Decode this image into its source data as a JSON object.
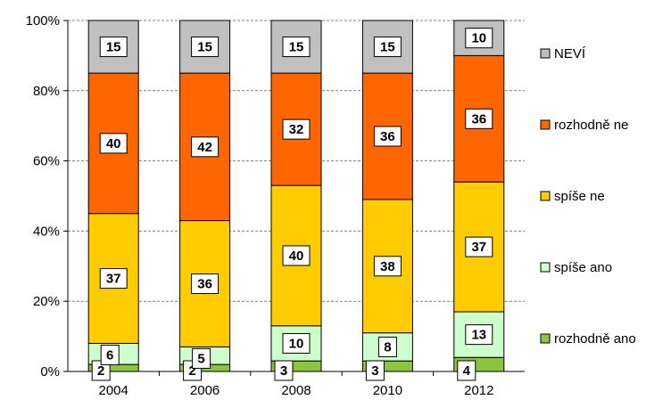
{
  "chart_data": {
    "type": "bar",
    "stacked": true,
    "percent": true,
    "categories": [
      "2004",
      "2006",
      "2008",
      "2010",
      "2012"
    ],
    "series": [
      {
        "name": "rozhodně ano",
        "color": "#8BC53F",
        "values": [
          2,
          2,
          3,
          3,
          4
        ]
      },
      {
        "name": "spíše ano",
        "color": "#CCFFCC",
        "values": [
          6,
          5,
          10,
          8,
          13
        ]
      },
      {
        "name": "spíše ne",
        "color": "#FFCC00",
        "values": [
          37,
          36,
          40,
          38,
          37
        ]
      },
      {
        "name": "rozhodně ne",
        "color": "#FF6600",
        "values": [
          40,
          42,
          32,
          36,
          36
        ]
      },
      {
        "name": "NEVÍ",
        "color": "#C0C0C0",
        "values": [
          15,
          15,
          15,
          15,
          10
        ]
      }
    ],
    "yticks": [
      "0%",
      "20%",
      "40%",
      "60%",
      "80%",
      "100%"
    ],
    "ylim": [
      0,
      100
    ],
    "grid": true,
    "legend": "right"
  }
}
